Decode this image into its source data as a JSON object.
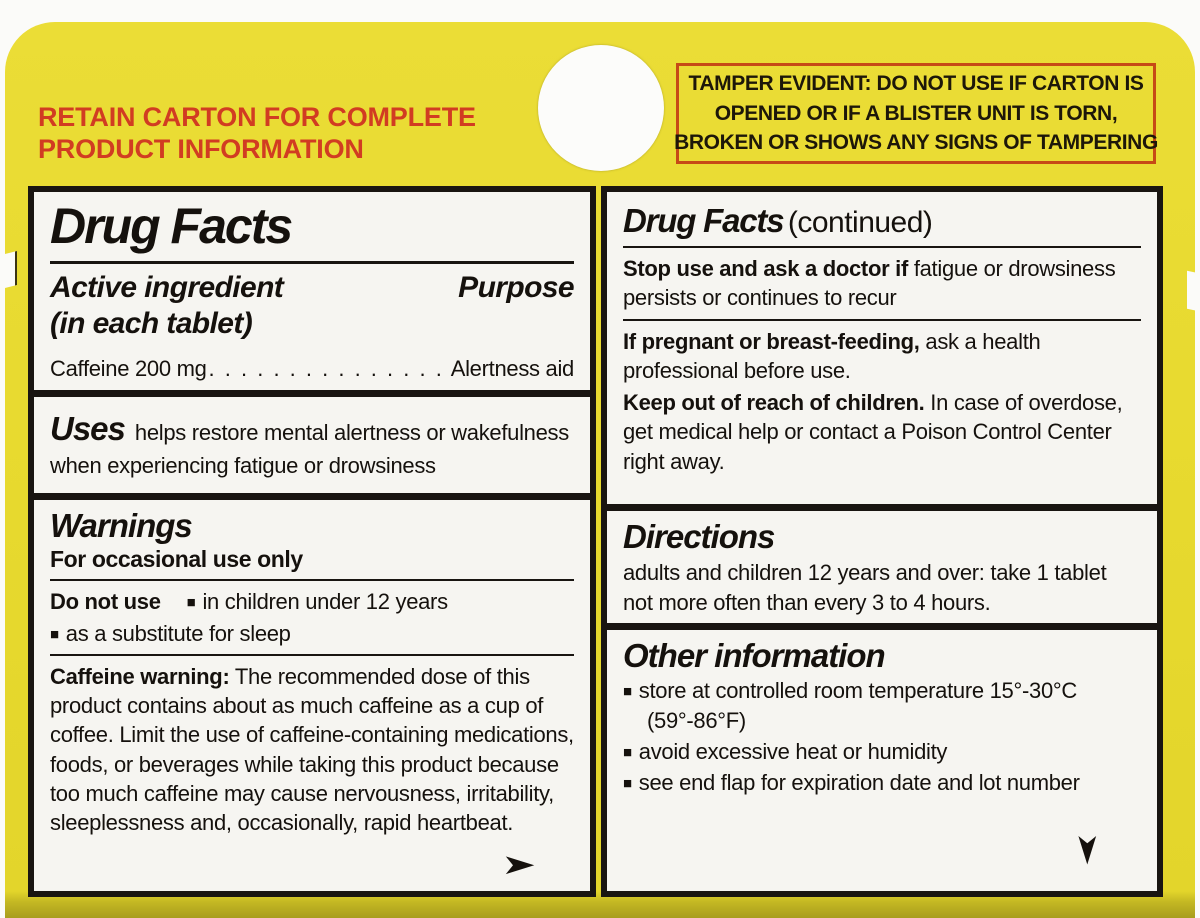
{
  "colors": {
    "carton_yellow": "#e7d92e",
    "accent_red": "#d13c22",
    "tamper_border_red": "#c64a16",
    "panel_black": "#191511",
    "panel_white": "#f6f5f1"
  },
  "icons": {
    "bullet": "■",
    "arrow": "➤"
  },
  "header": {
    "retain_lines": [
      "RETAIN CARTON FOR COMPLETE",
      "PRODUCT INFORMATION"
    ],
    "tamper_lines": [
      "TAMPER EVIDENT:  DO NOT USE IF CARTON IS",
      "OPENED OR IF A BLISTER UNIT IS TORN,",
      "BROKEN OR SHOWS ANY SIGNS OF TAMPERING"
    ]
  },
  "left_panel": {
    "title": "Drug Facts",
    "active_ingredient_heading": "Active ingredient",
    "active_ingredient_sub": "(in each tablet)",
    "purpose_heading": "Purpose",
    "ingredient": {
      "name": "Caffeine 200 mg",
      "dots": ". . . . . . . . . . . . . . . . . . . . . . . . . . . . . . . . . . . . . . . . . . . . . . . . . . .",
      "purpose": "Alertness aid"
    },
    "uses": {
      "heading": "Uses",
      "text": "helps restore mental alertness or wakefulness when experiencing fatigue or drowsiness"
    },
    "warnings": {
      "heading": "Warnings",
      "subheading": "For occasional use only",
      "do_not_use": {
        "lead": "Do not use",
        "items": [
          "in children under 12 years",
          "as a substitute for sleep"
        ]
      },
      "caffeine_warning": {
        "lead": "Caffeine warning:",
        "text": "The recommended dose of this product contains about as much caffeine as a cup of coffee. Limit the use of caffeine-containing medications, foods, or beverages while taking this product because too much caffeine may cause nervousness, irritability, sleeplessness and, occasionally, rapid heartbeat."
      }
    }
  },
  "right_panel": {
    "title": "Drug Facts",
    "title_suffix": "(continued)",
    "stop_use": {
      "lead": "Stop use and ask a doctor if",
      "text": "fatigue or drowsiness persists or continues to recur"
    },
    "pregnant": {
      "lead": "If pregnant or breast-feeding,",
      "text": "ask a health professional before use."
    },
    "keep_out": {
      "lead": "Keep out of reach of children.",
      "text": "In case of overdose, get medical help or contact a Poison Control Center right away."
    },
    "directions": {
      "heading": "Directions",
      "text": "adults and children 12 years and over: take 1 tablet not more often than every 3 to 4 hours."
    },
    "other_information": {
      "heading": "Other information",
      "items": [
        "store at controlled room temperature 15°-30°C (59°-86°F)",
        "avoid excessive heat or humidity",
        "see end flap for expiration date and lot number"
      ]
    }
  }
}
